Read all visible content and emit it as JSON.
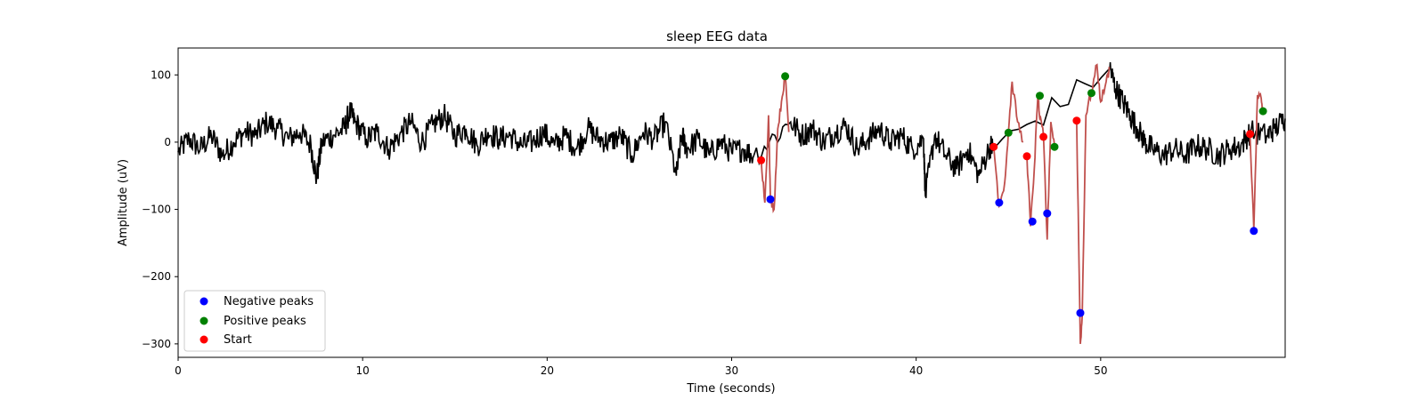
{
  "chart_data": {
    "type": "line",
    "title": "sleep EEG data",
    "xlabel": "Time (seconds)",
    "ylabel": "Amplitude (uV)",
    "xlim": [
      0,
      60
    ],
    "ylim": [
      -320,
      140
    ],
    "xticks": [
      0,
      10,
      20,
      30,
      40,
      50
    ],
    "yticks": [
      -300,
      -200,
      -100,
      0,
      100
    ],
    "grid": false,
    "legend_position": "lower-left",
    "colors": {
      "signal": "#000000",
      "highlight": "#c0504d",
      "negative_peaks": "#0000ff",
      "positive_peaks": "#008000",
      "start": "#ff0000"
    },
    "series": [
      {
        "role": "signal",
        "x": [
          0,
          0.6,
          1.2,
          1.8,
          2.4,
          3,
          3.6,
          4.2,
          4.8,
          5.4,
          6,
          6.6,
          7.2,
          7.5,
          7.8,
          8.4,
          9,
          9.3,
          9.6,
          10.2,
          10.8,
          11.4,
          12,
          12.6,
          13.2,
          13.8,
          14.4,
          15,
          15.6,
          16.2,
          16.8,
          17.4,
          18,
          18.6,
          19.2,
          19.8,
          20.4,
          21,
          21.6,
          22.2,
          22.8,
          23.4,
          24,
          24.6,
          25.2,
          25.8,
          26.4,
          27,
          27.3,
          27.6,
          28.2,
          28.8,
          29.4,
          30,
          30.6,
          31.2,
          33.2,
          33.8,
          34.4,
          35,
          35.6,
          36.2,
          36.8,
          37.4,
          38,
          38.6,
          39.2,
          39.8,
          40.4,
          40.5,
          41,
          41.6,
          42.2,
          42.8,
          43.4,
          44,
          44.2,
          50.5,
          50.8,
          51.2,
          51.6,
          52,
          52.4,
          52.8,
          53.4,
          54,
          54.6,
          55.2,
          55.8,
          56.4,
          57,
          57.6,
          58.1,
          59,
          59.4,
          60
        ],
        "y": [
          -15,
          5,
          -10,
          10,
          -20,
          0,
          15,
          10,
          30,
          20,
          5,
          15,
          -5,
          -55,
          0,
          10,
          20,
          45,
          30,
          5,
          15,
          -10,
          10,
          30,
          0,
          25,
          40,
          10,
          20,
          -5,
          15,
          5,
          10,
          -5,
          0,
          15,
          -5,
          10,
          -10,
          20,
          5,
          0,
          10,
          -20,
          15,
          5,
          30,
          -50,
          10,
          -10,
          5,
          -20,
          0,
          -15,
          -10,
          -20,
          30,
          10,
          20,
          0,
          15,
          25,
          -10,
          5,
          20,
          0,
          10,
          -10,
          5,
          -80,
          10,
          -20,
          -40,
          -10,
          -50,
          -5,
          -10,
          110,
          80,
          60,
          40,
          20,
          0,
          -10,
          -20,
          -10,
          -20,
          -5,
          -10,
          -20,
          -10,
          -5,
          15,
          10,
          20,
          35
        ]
      },
      {
        "role": "highlight",
        "segments": [
          {
            "x": [
              31.6,
              31.8,
              32.0,
              32.1,
              32.3,
              32.5,
              32.7,
              32.9,
              33.1
            ],
            "y": [
              -25,
              -90,
              40,
              -85,
              -100,
              20,
              60,
              100,
              15
            ]
          },
          {
            "x": [
              44.2,
              44.5,
              44.8,
              45.0,
              45.2,
              45.5,
              45.8
            ],
            "y": [
              -5,
              -95,
              -60,
              15,
              90,
              30,
              0
            ]
          },
          {
            "x": [
              46.0,
              46.2,
              46.4,
              46.6,
              46.7,
              46.9,
              47.1,
              47.3,
              47.5
            ],
            "y": [
              -20,
              -125,
              -40,
              70,
              35,
              10,
              -145,
              30,
              -5
            ]
          },
          {
            "x": [
              48.7,
              48.9,
              49.0,
              49.2,
              49.5,
              49.8,
              50.0,
              50.3,
              50.5
            ],
            "y": [
              30,
              -300,
              -260,
              40,
              75,
              115,
              60,
              90,
              110
            ]
          },
          {
            "x": [
              58.1,
              58.3,
              58.5,
              58.7,
              58.8
            ],
            "y": [
              10,
              -130,
              70,
              65,
              45
            ]
          }
        ]
      }
    ],
    "markers": {
      "negative_peaks": {
        "label": "Negative peaks",
        "x": [
          32.1,
          44.5,
          46.3,
          47.1,
          48.9,
          58.3
        ],
        "y": [
          -85,
          -90,
          -118,
          -106,
          -254,
          -132
        ]
      },
      "positive_peaks": {
        "label": "Positive peaks",
        "x": [
          32.9,
          45.0,
          46.7,
          47.5,
          49.5,
          58.8
        ],
        "y": [
          98,
          14,
          69,
          -7,
          73,
          46
        ]
      },
      "start": {
        "label": "Start",
        "x": [
          31.6,
          44.2,
          46.0,
          46.9,
          48.7,
          58.1
        ],
        "y": [
          -27,
          -7,
          -21,
          8,
          32,
          12
        ]
      }
    }
  }
}
